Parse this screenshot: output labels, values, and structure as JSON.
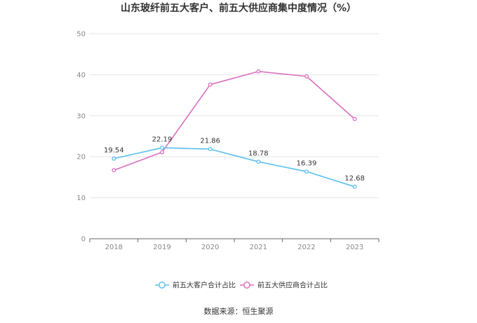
{
  "chart_data": {
    "type": "line",
    "title": "山东玻纤前五大客户、前五大供应商集中度情况（%）",
    "xlabel": "",
    "ylabel": "",
    "categories": [
      "2018",
      "2019",
      "2020",
      "2021",
      "2022",
      "2023"
    ],
    "ylim": [
      0,
      50
    ],
    "yticks": [
      0,
      10,
      20,
      30,
      40,
      50
    ],
    "grid": true,
    "legend_position": "bottom-center",
    "series": [
      {
        "name": "前五大客户合计占比",
        "color": "#5bc0f0",
        "values": [
          19.54,
          22.19,
          21.86,
          18.78,
          16.39,
          12.68
        ],
        "data_labels": [
          "19.54",
          "22.19",
          "21.86",
          "18.78",
          "16.39",
          "12.68"
        ]
      },
      {
        "name": "前五大供应商合计占比",
        "color": "#d96fbf",
        "values": [
          16.7,
          21.1,
          37.6,
          40.8,
          39.6,
          29.2
        ],
        "data_labels": []
      }
    ]
  },
  "source": "数据来源：恒生聚源"
}
